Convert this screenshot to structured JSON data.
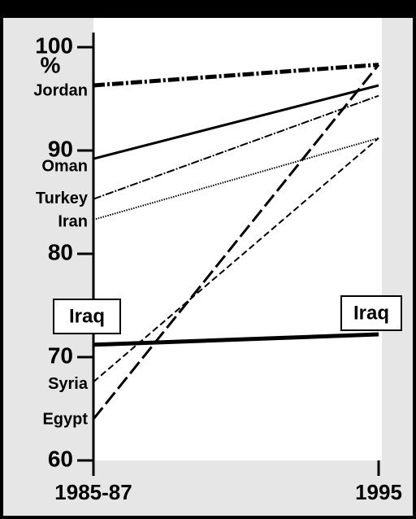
{
  "chart_data": {
    "type": "line",
    "y_unit": "%",
    "categories": [
      "1985-87",
      "1995"
    ],
    "ylim": [
      60,
      100
    ],
    "yticks": [
      60,
      70,
      80,
      90,
      100
    ],
    "series": [
      {
        "name": "Jordan",
        "color": "#000000",
        "style": "dash-dot-bold",
        "values": [
          96.3,
          98.3
        ]
      },
      {
        "name": "Oman",
        "color": "#000000",
        "style": "solid",
        "values": [
          89.2,
          96.3
        ]
      },
      {
        "name": "Turkey",
        "color": "#000000",
        "style": "dash-dot",
        "values": [
          85.3,
          95.3
        ]
      },
      {
        "name": "Iran",
        "color": "#000000",
        "style": "dotted",
        "values": [
          83.3,
          91.2
        ]
      },
      {
        "name": "Iraq",
        "color": "#000000",
        "style": "solid-bold",
        "values": [
          71.2,
          72.2
        ]
      },
      {
        "name": "Syria",
        "color": "#000000",
        "style": "dashed",
        "values": [
          67.6,
          91.2
        ]
      },
      {
        "name": "Egypt",
        "color": "#000000",
        "style": "long-dashed",
        "values": [
          64.0,
          98.3
        ]
      }
    ]
  }
}
